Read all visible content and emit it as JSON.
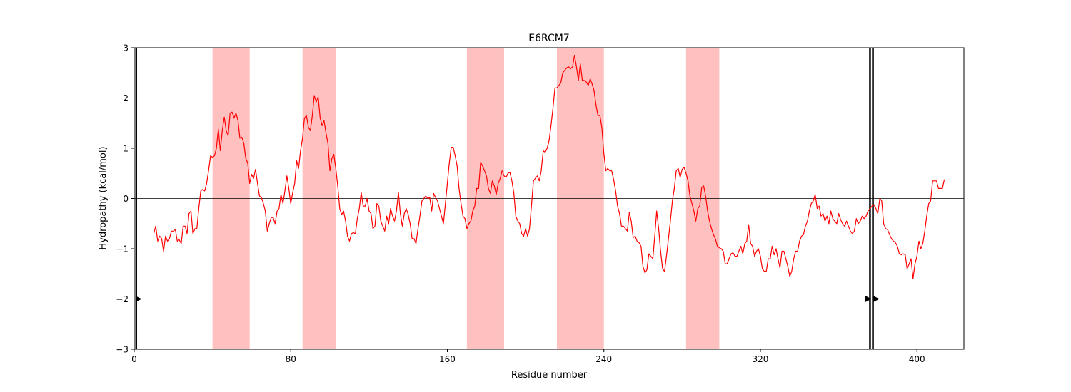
{
  "chart_data": {
    "type": "line",
    "title": "E6RCM7",
    "xlabel": "Residue number",
    "ylabel": "Hydropathy (kcal/mol)",
    "xlim": [
      0,
      424
    ],
    "ylim": [
      -3,
      3
    ],
    "xticks": [
      0,
      80,
      160,
      240,
      320,
      400
    ],
    "yticks": [
      -3,
      -2,
      -1,
      0,
      1,
      2,
      3
    ],
    "zero_line": true,
    "line_color": "#ff0000",
    "band_color": "#ffc0c0",
    "highlight_regions": [
      [
        40,
        59
      ],
      [
        86,
        103
      ],
      [
        170,
        189
      ],
      [
        216,
        240
      ],
      [
        282,
        299
      ]
    ],
    "vertical_markers": [
      1,
      376,
      377.5
    ],
    "arrow_markers": [
      {
        "x": 2,
        "y": -2
      },
      {
        "x": 375,
        "y": -2
      },
      {
        "x": 379,
        "y": -2
      }
    ],
    "series": [
      {
        "x": [
          10,
          11,
          12,
          13,
          14,
          15,
          16,
          17,
          18,
          19,
          20,
          21,
          22,
          23,
          24,
          25,
          26,
          27,
          28,
          29,
          30,
          31,
          32,
          33,
          34,
          35,
          36,
          37,
          38,
          39,
          40,
          41,
          42,
          43,
          44,
          45,
          46,
          47,
          48,
          49,
          50,
          51,
          52,
          53,
          54,
          55,
          56,
          57,
          58,
          59,
          60,
          61,
          62,
          63,
          64,
          65,
          66,
          67,
          68,
          69,
          70,
          71,
          72,
          73,
          74,
          75,
          76,
          77,
          78,
          79,
          80,
          81,
          82,
          83,
          84,
          85,
          86,
          87,
          88,
          89,
          90,
          91,
          92,
          93,
          94,
          95,
          96,
          97,
          98,
          99,
          100,
          101,
          102,
          103,
          104,
          105,
          106,
          107,
          108,
          109,
          110,
          111,
          112,
          113,
          114,
          115,
          116,
          117,
          118,
          119,
          120,
          121,
          122,
          123,
          124,
          125,
          126,
          127,
          128,
          129,
          130,
          131,
          132,
          133,
          134,
          135,
          136,
          137,
          138,
          139,
          140,
          141,
          142,
          143,
          144,
          145,
          146,
          147,
          148,
          149,
          150,
          151,
          152,
          153,
          154,
          155,
          156,
          157,
          158,
          159,
          160,
          161,
          162,
          163,
          164,
          165,
          166,
          167,
          168,
          169,
          170,
          171,
          172,
          173,
          174,
          175,
          176,
          177,
          178,
          179,
          180,
          181,
          182,
          183,
          184,
          185,
          186,
          187,
          188,
          189,
          190,
          191,
          192,
          193,
          194,
          195,
          196,
          197,
          198,
          199,
          200,
          201,
          202,
          203,
          204,
          205,
          206,
          207,
          208,
          209,
          210,
          211,
          212,
          213,
          214,
          215,
          216,
          217,
          218,
          219,
          220,
          221,
          222,
          223,
          224,
          225,
          226,
          227,
          228,
          229,
          230,
          231,
          232,
          233,
          234,
          235,
          236,
          237,
          238,
          239,
          240,
          241,
          242,
          243,
          244,
          245,
          246,
          247,
          248,
          249,
          250,
          251,
          252,
          253,
          254,
          255,
          256,
          257,
          258,
          259,
          260,
          261,
          262,
          263,
          264,
          265,
          266,
          267,
          268,
          269,
          270,
          271,
          272,
          273,
          274,
          275,
          276,
          277,
          278,
          279,
          280,
          281,
          282,
          283,
          284,
          285,
          286,
          287,
          288,
          289,
          290,
          291,
          292,
          293,
          294,
          295,
          296,
          297,
          298,
          299,
          300,
          301,
          302,
          303,
          304,
          305,
          306,
          307,
          308,
          309,
          310,
          311,
          312,
          313,
          314,
          315,
          316,
          317,
          318,
          319,
          320,
          321,
          322,
          323,
          324,
          325,
          326,
          327,
          328,
          329,
          330,
          331,
          332,
          333,
          334,
          335,
          336,
          337,
          338,
          339,
          340,
          341,
          342,
          343,
          344,
          345,
          346,
          347,
          348,
          349,
          350,
          351,
          352,
          353,
          354,
          355,
          356,
          357,
          358,
          359,
          360,
          361,
          362,
          363,
          364,
          365,
          366,
          367,
          368,
          369,
          370,
          371,
          372,
          373,
          374,
          375,
          376,
          377,
          378,
          379,
          380,
          381,
          382,
          383,
          384,
          385,
          386,
          387,
          388,
          389,
          390,
          391,
          392,
          393,
          394,
          395,
          396,
          397,
          398,
          399,
          400,
          401,
          402,
          403,
          404,
          405,
          406,
          407,
          408,
          409,
          410,
          411,
          412,
          413,
          414
        ],
        "values": [
          -0.7,
          -0.55,
          -0.85,
          -0.75,
          -0.8,
          -1.05,
          -0.75,
          -0.85,
          -0.8,
          -0.65,
          -0.65,
          -0.62,
          -0.85,
          -0.82,
          -0.9,
          -0.55,
          -0.55,
          -0.7,
          -0.3,
          -0.25,
          -0.7,
          -0.6,
          -0.6,
          -0.2,
          0.15,
          0.18,
          0.15,
          0.3,
          0.55,
          0.85,
          0.82,
          0.85,
          1.0,
          1.38,
          0.95,
          1.35,
          1.62,
          1.35,
          1.25,
          1.7,
          1.72,
          1.6,
          1.7,
          1.55,
          1.2,
          1.22,
          1.1,
          0.8,
          0.7,
          0.3,
          0.48,
          0.4,
          0.58,
          0.3,
          0.05,
          0.02,
          -0.1,
          -0.25,
          -0.65,
          -0.5,
          -0.38,
          -0.38,
          -0.5,
          -0.25,
          -0.2,
          0.08,
          -0.1,
          0.15,
          0.45,
          0.2,
          -0.1,
          0.12,
          0.3,
          0.75,
          0.6,
          0.95,
          1.2,
          1.6,
          1.65,
          1.42,
          1.35,
          1.65,
          2.05,
          1.92,
          2.02,
          1.6,
          1.45,
          1.55,
          1.3,
          1.1,
          0.55,
          0.8,
          0.88,
          0.6,
          0.25,
          -0.2,
          -0.32,
          -0.25,
          -0.45,
          -0.75,
          -0.85,
          -0.7,
          -0.68,
          -0.7,
          -0.4,
          -0.2,
          0.12,
          -0.15,
          -0.15,
          0.0,
          -0.25,
          -0.3,
          -0.6,
          -0.55,
          -0.1,
          -0.15,
          -0.45,
          -0.55,
          -0.65,
          -0.35,
          -0.5,
          -0.2,
          -0.35,
          -0.45,
          -0.25,
          0.12,
          -0.3,
          -0.55,
          -0.3,
          -0.2,
          -0.32,
          -0.5,
          -0.8,
          -0.8,
          -0.9,
          -0.6,
          -0.35,
          -0.05,
          0.0,
          0.05,
          0.0,
          0.02,
          -0.25,
          0.1,
          0.02,
          -0.05,
          -0.2,
          -0.35,
          -0.5,
          -0.1,
          0.3,
          0.7,
          1.02,
          1.02,
          0.85,
          0.65,
          0.2,
          -0.1,
          -0.35,
          -0.4,
          -0.6,
          -0.5,
          -0.45,
          -0.25,
          -0.15,
          0.2,
          0.2,
          0.72,
          0.65,
          0.55,
          0.45,
          0.2,
          0.1,
          0.35,
          0.25,
          0.08,
          0.3,
          0.4,
          0.55,
          0.45,
          0.42,
          0.5,
          0.52,
          0.35,
          0.1,
          -0.35,
          -0.45,
          -0.5,
          -0.7,
          -0.75,
          -0.6,
          -0.75,
          -0.6,
          -0.15,
          0.35,
          0.4,
          0.45,
          0.35,
          0.55,
          0.95,
          0.92,
          1.0,
          1.15,
          1.45,
          1.8,
          2.2,
          2.2,
          2.25,
          2.3,
          2.5,
          2.55,
          2.6,
          2.62,
          2.58,
          2.62,
          2.85,
          2.62,
          2.35,
          2.68,
          2.35,
          2.35,
          2.32,
          2.25,
          2.38,
          2.28,
          2.15,
          1.85,
          1.65,
          1.65,
          1.4,
          0.9,
          0.55,
          0.6,
          0.55,
          0.55,
          0.38,
          0.15,
          -0.15,
          -0.3,
          -0.55,
          -0.55,
          -0.6,
          -0.65,
          -0.28,
          -0.45,
          -0.78,
          -0.75,
          -0.85,
          -0.88,
          -0.95,
          -1.35,
          -1.48,
          -1.42,
          -1.1,
          -1.15,
          -1.2,
          -0.75,
          -0.25,
          -0.6,
          -1.05,
          -1.4,
          -1.45,
          -1.15,
          -0.8,
          -0.45,
          -0.05,
          0.2,
          0.55,
          0.6,
          0.42,
          0.58,
          0.62,
          0.5,
          0.35,
          0.05,
          -0.1,
          -0.25,
          -0.45,
          -0.2,
          -0.15,
          0.22,
          0.25,
          0.05,
          -0.25,
          -0.45,
          -0.6,
          -0.72,
          -0.8,
          -0.95,
          -0.98,
          -1.0,
          -1.05,
          -1.3,
          -1.3,
          -1.2,
          -1.1,
          -1.08,
          -1.15,
          -1.15,
          -1.05,
          -0.95,
          -1.1,
          -0.9,
          -0.85,
          -0.52,
          -0.9,
          -0.95,
          -1.15,
          -1.05,
          -1.0,
          -1.15,
          -1.4,
          -1.45,
          -1.45,
          -1.2,
          -1.2,
          -0.95,
          -1.12,
          -1.0,
          -1.2,
          -1.38,
          -1.05,
          -1.05,
          -1.2,
          -1.35,
          -1.55,
          -1.45,
          -1.2,
          -1.05,
          -1.05,
          -0.85,
          -0.75,
          -0.72,
          -0.55,
          -0.45,
          -0.25,
          -0.1,
          -0.05,
          0.08,
          -0.2,
          -0.15,
          -0.35,
          -0.3,
          -0.45,
          -0.35,
          -0.5,
          -0.25,
          -0.4,
          -0.45,
          -0.5,
          -0.3,
          -0.42,
          -0.5,
          -0.55,
          -0.45,
          -0.55,
          -0.65,
          -0.7,
          -0.65,
          -0.4,
          -0.5,
          -0.45,
          -0.35,
          -0.4,
          -0.35,
          -0.25,
          -0.2,
          -0.15,
          -0.12,
          -0.2,
          -0.3,
          0.0,
          -0.05,
          -0.5,
          -0.6,
          -0.62,
          -0.72,
          -0.8,
          -0.85,
          -0.88,
          -0.95,
          -1.1,
          -1.12,
          -1.1,
          -1.12,
          -1.4,
          -1.3,
          -1.2,
          -1.6,
          -1.3,
          -1.15,
          -0.85,
          -1.0,
          -0.9,
          -0.65,
          -0.35,
          -0.1,
          -0.05,
          0.35,
          0.35,
          0.35,
          0.2,
          0.2,
          0.2,
          0.38
        ]
      }
    ]
  }
}
